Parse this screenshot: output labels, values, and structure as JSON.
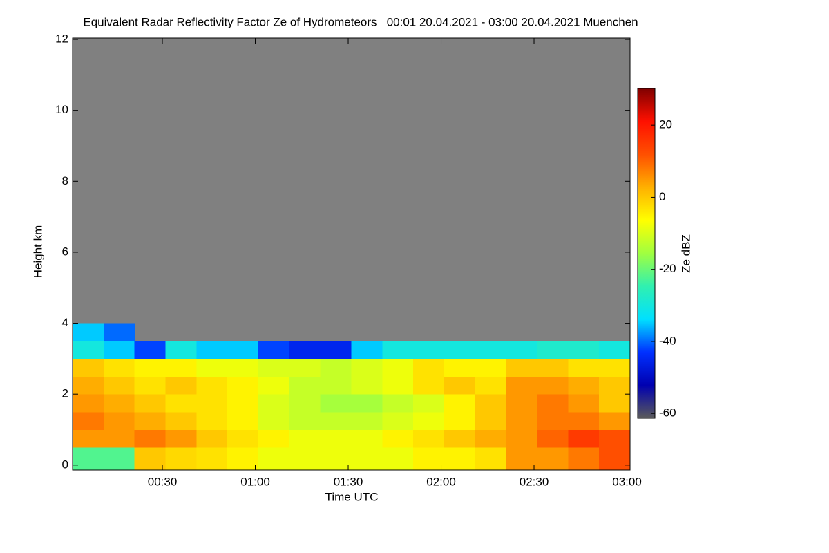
{
  "chart_data": {
    "type": "heatmap",
    "title": "Equivalent Radar Reflectivity Factor Ze of Hydrometeors   00:01 20.04.2021 - 03:00 20.04.2021 Muenchen",
    "xlabel": "Time UTC",
    "ylabel": "Height km",
    "colorbar_label": "Ze dBZ",
    "nodata_color": "#808080",
    "colormap": [
      "#5a5a5a",
      "#0000b0",
      "#0030ff",
      "#00e0ff",
      "#30f0b0",
      "#a0ff40",
      "#ffff00",
      "#ffb000",
      "#ff5000",
      "#ff1000",
      "#800000"
    ],
    "xlim": [
      1,
      181
    ],
    "xticks": [
      {
        "value": 30,
        "label": "00:30"
      },
      {
        "value": 60,
        "label": "01:00"
      },
      {
        "value": 90,
        "label": "01:30"
      },
      {
        "value": 120,
        "label": "02:00"
      },
      {
        "value": 150,
        "label": "02:30"
      },
      {
        "value": 180,
        "label": "03:00"
      }
    ],
    "ylim": [
      -0.14,
      12.04
    ],
    "yticks": [
      0,
      2,
      4,
      6,
      8,
      10,
      12
    ],
    "zlim": [
      -61.3,
      30.2
    ],
    "zticks": [
      -60,
      -40,
      -20,
      0,
      20
    ],
    "x_bins": [
      1,
      11,
      21,
      31,
      41,
      51,
      61,
      71,
      81,
      91,
      101,
      111,
      121,
      131,
      141,
      151,
      161,
      171,
      181
    ],
    "y_bins": [
      -0.14,
      0.5,
      1,
      1.5,
      2,
      2.5,
      3,
      3.5,
      4
    ],
    "values": [
      [
        -22,
        -22,
        0,
        -2,
        -3,
        -5,
        -8,
        -8,
        -8,
        -8,
        -8,
        -5,
        -5,
        -3,
        5,
        5,
        8,
        12
      ],
      [
        5,
        5,
        8,
        5,
        0,
        -3,
        -5,
        -8,
        -8,
        -8,
        -5,
        -3,
        0,
        3,
        5,
        10,
        15,
        12
      ],
      [
        8,
        5,
        3,
        0,
        -3,
        -5,
        -10,
        -12,
        -12,
        -12,
        -10,
        -8,
        -5,
        0,
        5,
        8,
        8,
        5
      ],
      [
        5,
        3,
        0,
        -3,
        -3,
        -5,
        -10,
        -12,
        -15,
        -15,
        -12,
        -10,
        -5,
        0,
        5,
        8,
        5,
        0
      ],
      [
        3,
        0,
        -3,
        0,
        -3,
        -5,
        -8,
        -12,
        -12,
        -10,
        -8,
        -3,
        0,
        -3,
        5,
        5,
        3,
        0
      ],
      [
        0,
        -3,
        -5,
        -5,
        -8,
        -8,
        -10,
        -10,
        -12,
        -10,
        -8,
        -3,
        -5,
        -5,
        0,
        0,
        -3,
        -3
      ],
      [
        -30,
        -35,
        -42,
        -30,
        -35,
        -35,
        -42,
        -45,
        -45,
        -35,
        -30,
        -30,
        -30,
        -30,
        -30,
        -28,
        -28,
        -30
      ],
      [
        -35,
        -40,
        null,
        null,
        null,
        null,
        null,
        null,
        null,
        null,
        null,
        null,
        null,
        null,
        null,
        null,
        null,
        null
      ]
    ]
  }
}
